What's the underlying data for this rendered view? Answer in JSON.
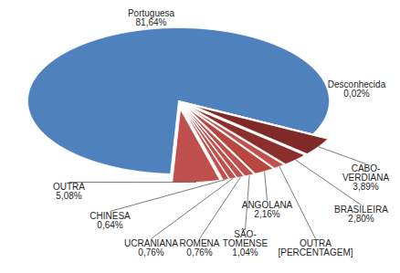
{
  "chart_data": {
    "type": "pie",
    "categories": [
      "Portuguesa",
      "Desconhecida",
      "CABO-VERDIANA",
      "BRASILEIRA",
      "OUTRA [PERCENTAGEM]",
      "ANGOLANA",
      "SÃO-TOMENSE",
      "ROMENA",
      "UCRANIANA",
      "CHINESA",
      "OUTRA"
    ],
    "values": [
      81.64,
      0.02,
      3.89,
      2.8,
      1.21,
      2.16,
      1.04,
      0.76,
      0.76,
      0.64,
      5.08
    ],
    "value_labels": [
      "81,64%",
      "0,02%",
      "3,89%",
      "2,80%",
      null,
      "2,16%",
      "1,04%",
      "0,76%",
      "0,76%",
      "0,64%",
      "5,08%"
    ],
    "colors": [
      "#4f81bd",
      "#1f3864",
      "#7f2a28",
      "#8c2f2c",
      "#c0504d",
      "#b8473f",
      "#c0504d",
      "#c0504d",
      "#c0504d",
      "#c0504d",
      "#c0504d"
    ],
    "data_labels": true
  }
}
